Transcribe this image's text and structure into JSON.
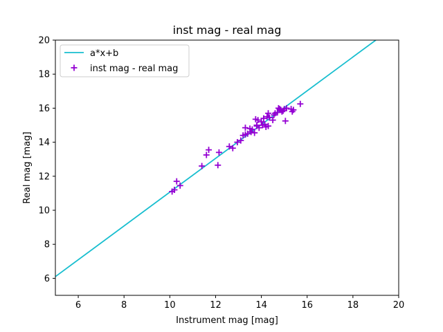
{
  "chart_data": {
    "type": "scatter",
    "title": "inst mag - real mag",
    "xlabel": "Instrument mag [mag]",
    "ylabel": "Real mag [mag]",
    "xlim": [
      5,
      20
    ],
    "ylim": [
      5,
      20
    ],
    "xticks": [
      "6",
      "8",
      "10",
      "12",
      "14",
      "16",
      "18",
      "20"
    ],
    "yticks": [
      "6",
      "8",
      "10",
      "12",
      "14",
      "16",
      "18",
      "20"
    ],
    "grid": false,
    "legend_position": "top-left",
    "series": [
      {
        "name": "a*x+b",
        "kind": "line",
        "color": "#17becf",
        "x": [
          5.0,
          19.0
        ],
        "y": [
          6.1,
          20.0
        ]
      },
      {
        "name": "inst mag - real mag",
        "kind": "scatter",
        "marker": "plus",
        "color": "#9400d3",
        "x": [
          10.1,
          10.2,
          10.3,
          10.45,
          11.4,
          11.6,
          11.7,
          12.1,
          12.15,
          12.6,
          12.75,
          12.95,
          13.1,
          13.2,
          13.3,
          13.3,
          13.4,
          13.5,
          13.55,
          13.6,
          13.7,
          13.75,
          13.8,
          13.8,
          13.85,
          13.9,
          14.0,
          14.05,
          14.1,
          14.15,
          14.2,
          14.25,
          14.3,
          14.3,
          14.35,
          14.5,
          14.55,
          14.6,
          14.7,
          14.75,
          14.8,
          14.85,
          14.9,
          14.95,
          15.0,
          15.05,
          15.1,
          15.3,
          15.35,
          15.4,
          15.7
        ],
        "y": [
          11.1,
          11.2,
          11.7,
          11.45,
          12.6,
          13.25,
          13.55,
          12.65,
          13.4,
          13.75,
          13.65,
          14.0,
          14.1,
          14.4,
          14.85,
          14.45,
          14.5,
          14.8,
          14.6,
          14.75,
          14.55,
          15.35,
          15.0,
          14.95,
          15.3,
          14.85,
          15.2,
          15.0,
          15.4,
          15.05,
          14.9,
          15.5,
          15.7,
          14.95,
          15.45,
          15.3,
          15.6,
          15.7,
          15.75,
          16.0,
          15.95,
          15.9,
          15.8,
          15.85,
          15.95,
          15.25,
          16.0,
          15.95,
          15.8,
          15.9,
          16.25
        ]
      }
    ]
  }
}
